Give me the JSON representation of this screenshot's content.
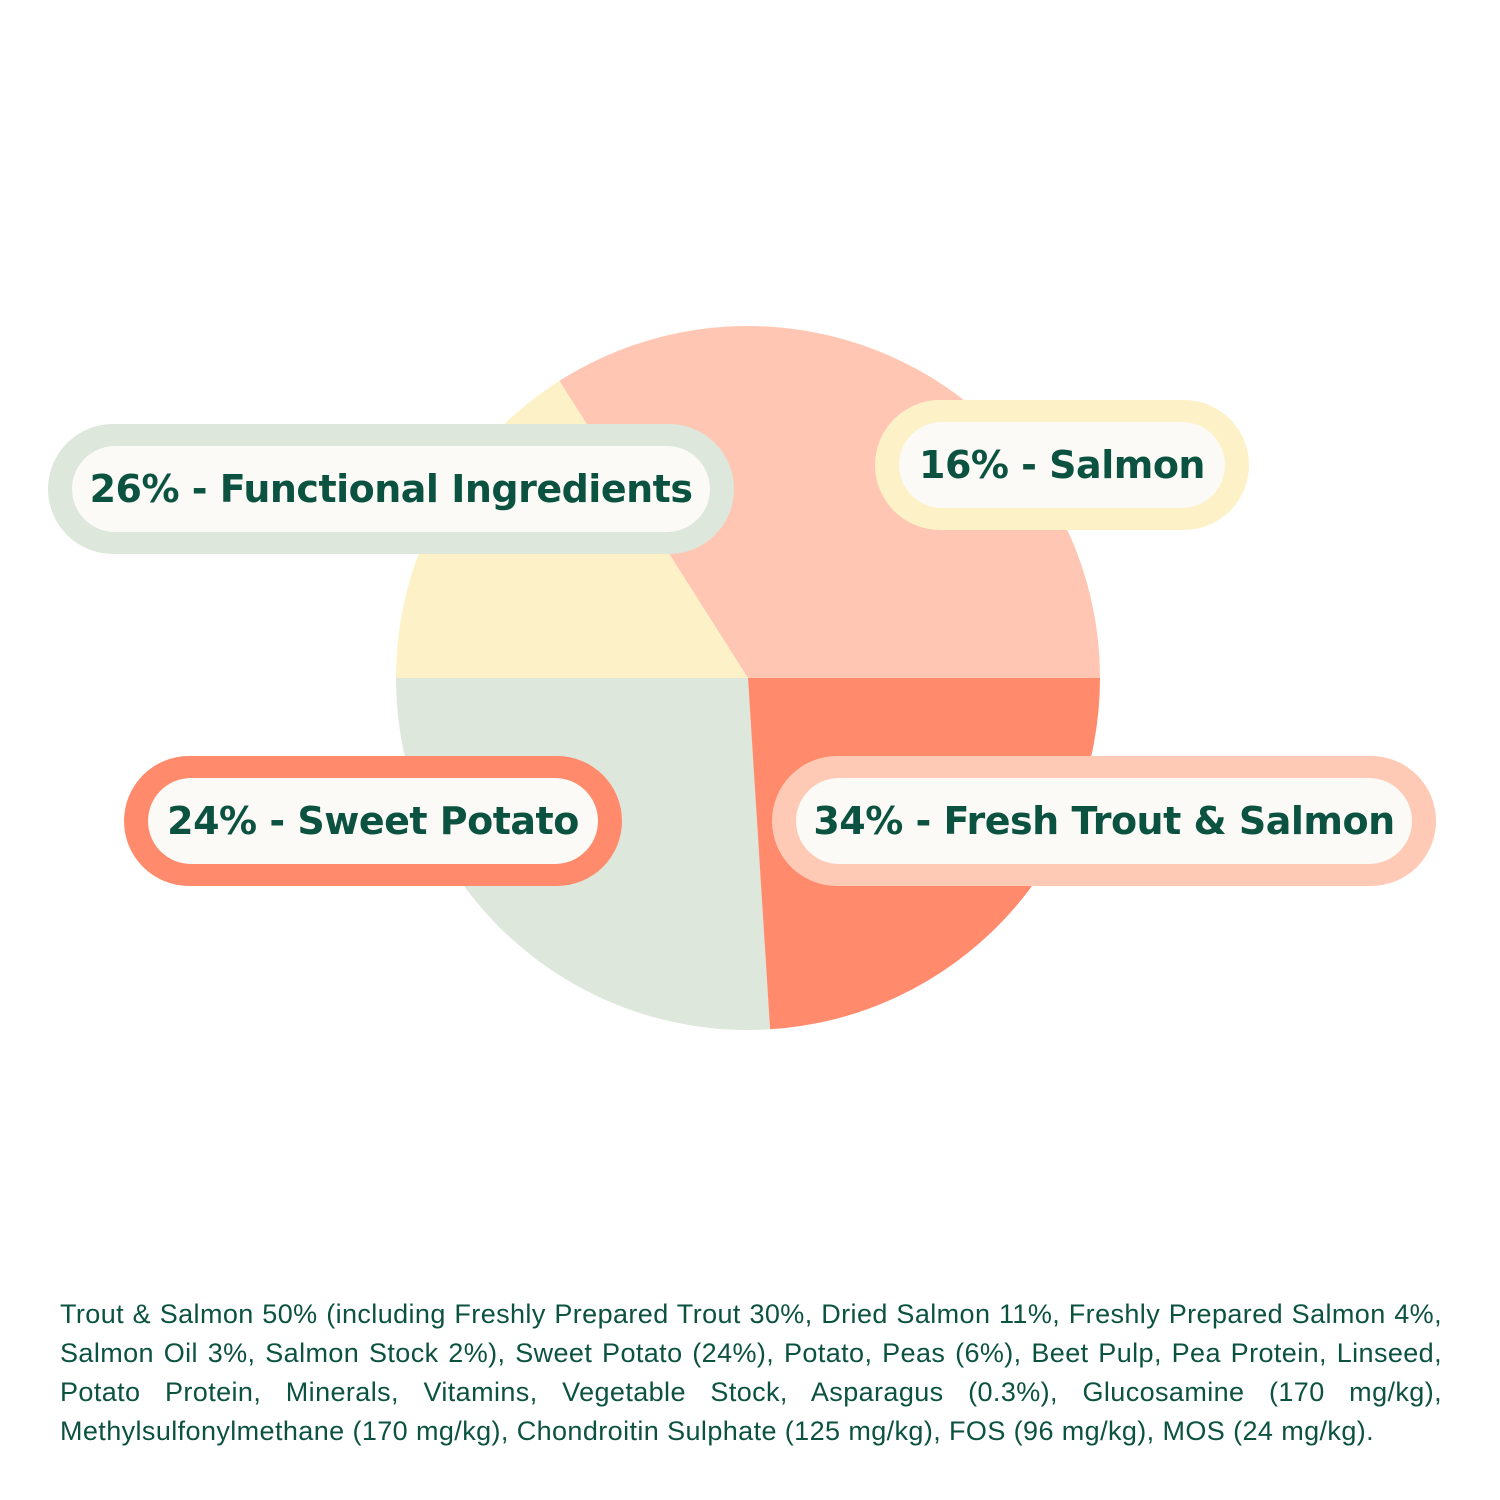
{
  "chart_data": {
    "type": "pie",
    "slices": [
      {
        "label": "26% - Functional Ingredients",
        "value": 26,
        "color": "#dde7dc"
      },
      {
        "label": "16% - Salmon",
        "value": 16,
        "color": "#fdf1c8"
      },
      {
        "label": "34% - Fresh Trout & Salmon",
        "value": 34,
        "color": "#ffc7b3"
      },
      {
        "label": "24% - Sweet Potato",
        "value": 24,
        "color": "#ff8a6c"
      }
    ]
  },
  "labels": {
    "functional": "26% - Functional Ingredients",
    "salmon": "16% - Salmon",
    "trout": "34% - Fresh Trout & Salmon",
    "potato": "24% - Sweet Potato"
  },
  "ingredients": "Trout & Salmon 50% (including Freshly Prepared Trout 30%, Dried Salmon 11%, Freshly Prepared Salmon 4%, Salmon Oil 3%, Salmon Stock 2%), Sweet Potato (24%), Potato, Peas (6%), Beet Pulp, Pea Protein, Linseed, Potato Protein, Minerals, Vitamins, Vegetable Stock, Asparagus (0.3%), Glucosamine (170 mg/kg), Methylsulfonylmethane (170 mg/kg), Chondroitin Sulphate (125 mg/kg), FOS (96 mg/kg), MOS (24 mg/kg)."
}
